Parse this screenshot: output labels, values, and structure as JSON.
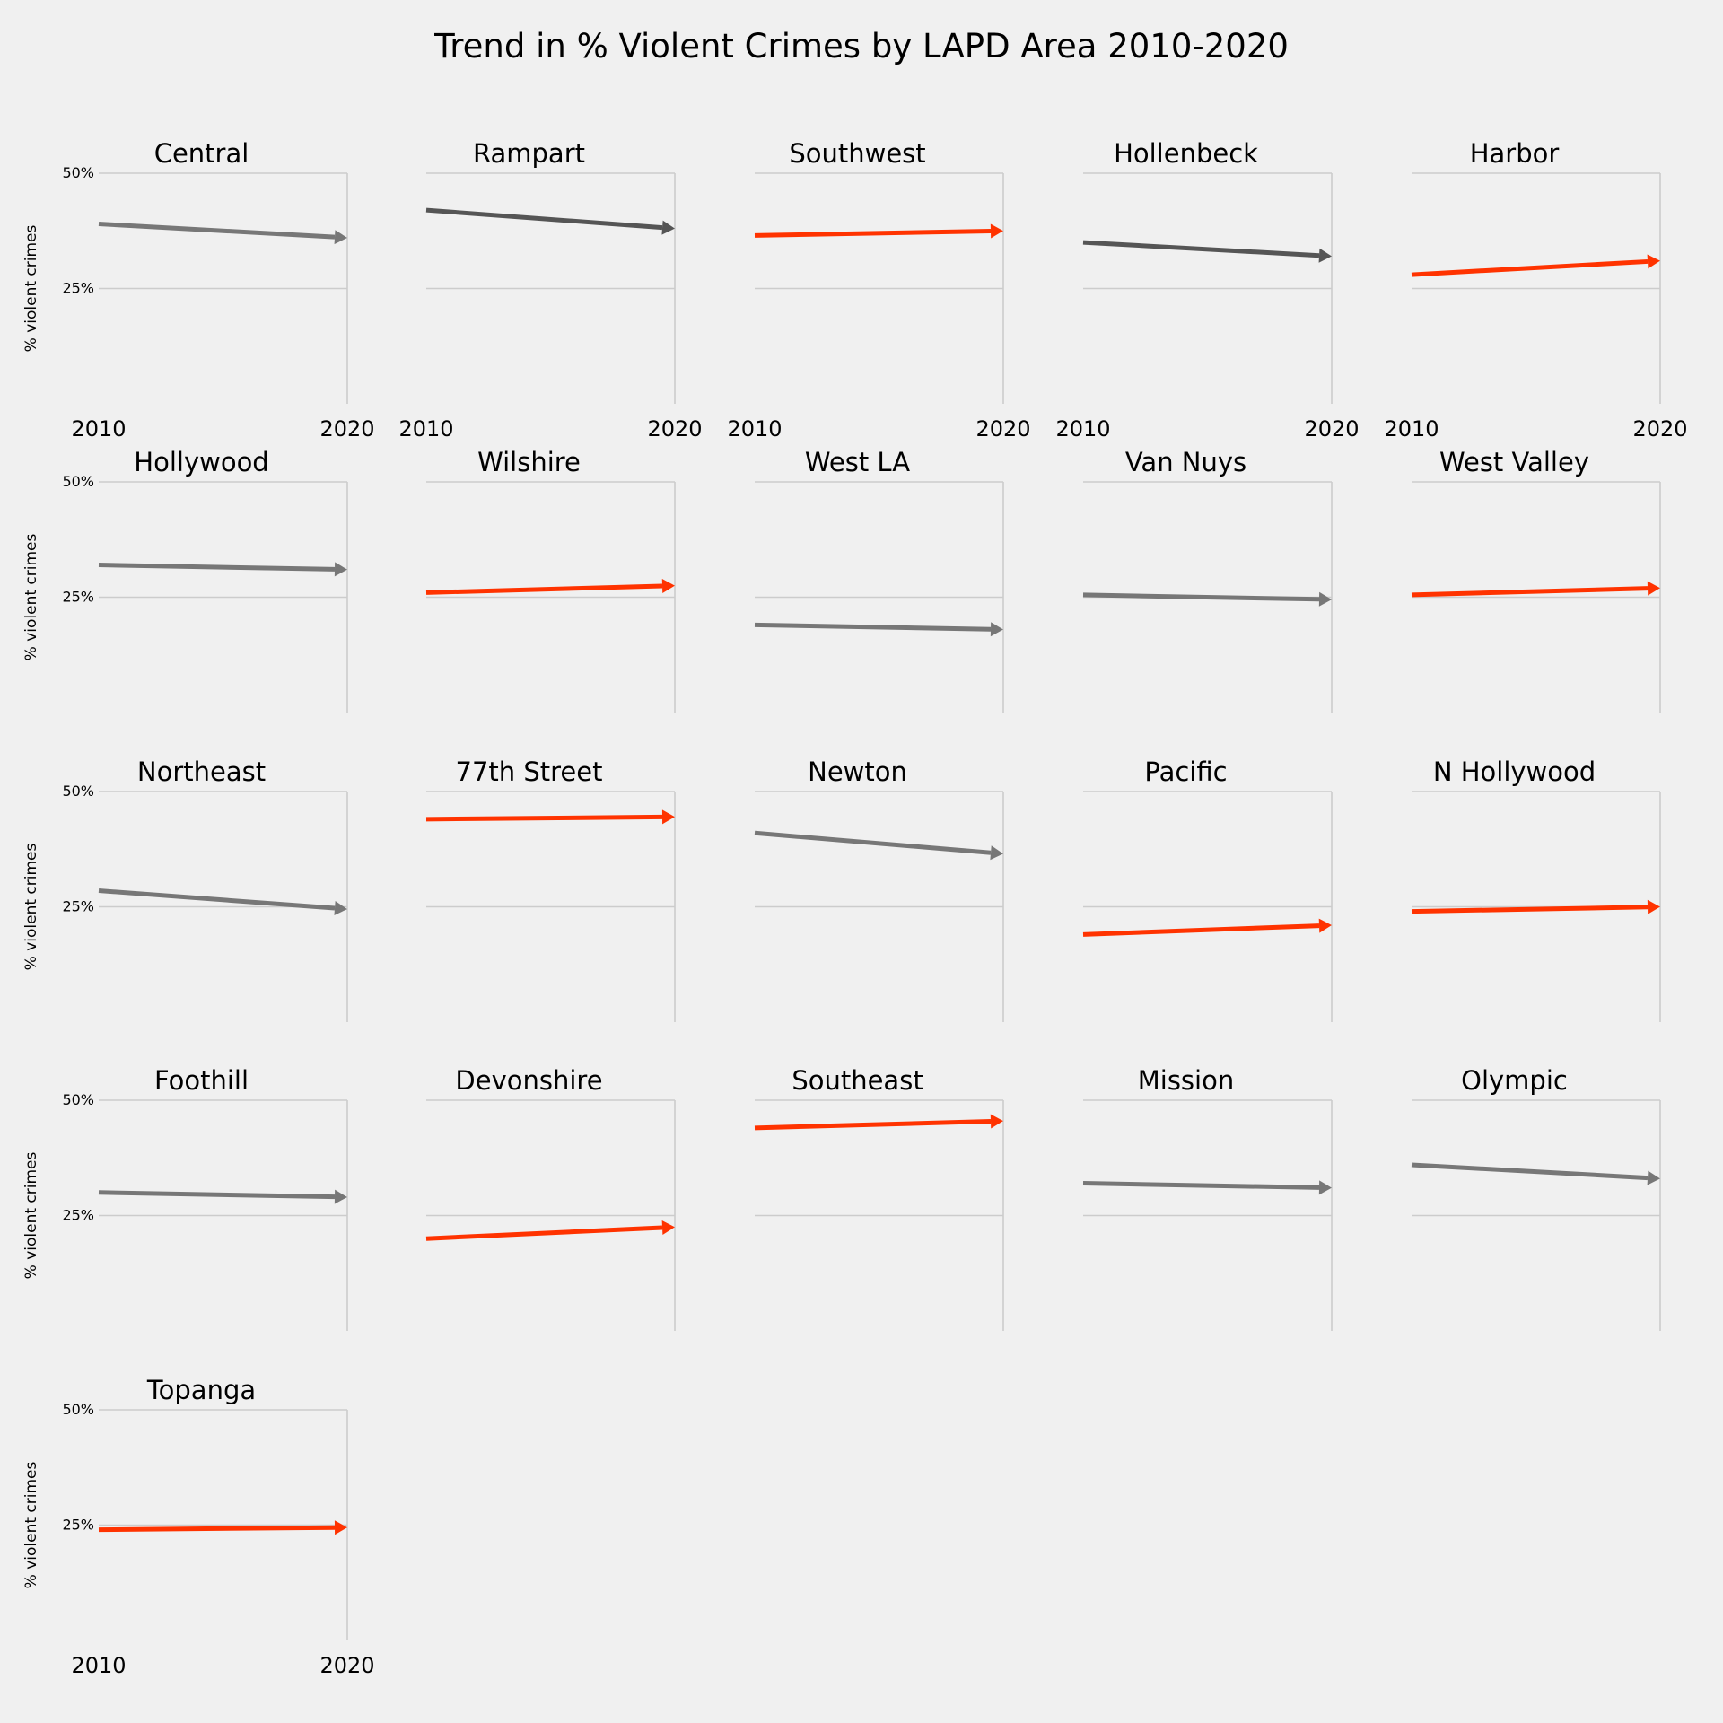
{
  "chart_data": {
    "type": "line",
    "title": "Trend in % Violent Crimes by LAPD Area 2010-2020",
    "ylabel": "% violent crimes",
    "x_ticks": [
      "2010",
      "2020"
    ],
    "y_ticks": [
      "25%",
      "50%"
    ],
    "ylim": [
      0,
      0.5
    ],
    "xlim": [
      2010,
      2020
    ],
    "colors": {
      "increase": "#ff3300",
      "decrease": "#777777",
      "decrease_dark": "#555555",
      "grid": "#cccccc",
      "background": "#f0f0f0"
    },
    "series": [
      {
        "name": "Central",
        "y2010": 0.39,
        "y2020": 0.36,
        "trend": "down"
      },
      {
        "name": "Rampart",
        "y2010": 0.42,
        "y2020": 0.38,
        "trend": "down",
        "dark": true
      },
      {
        "name": "Southwest",
        "y2010": 0.365,
        "y2020": 0.375,
        "trend": "up"
      },
      {
        "name": "Hollenbeck",
        "y2010": 0.35,
        "y2020": 0.32,
        "trend": "down",
        "dark": true
      },
      {
        "name": "Harbor",
        "y2010": 0.28,
        "y2020": 0.31,
        "trend": "up"
      },
      {
        "name": "Hollywood",
        "y2010": 0.32,
        "y2020": 0.31,
        "trend": "down"
      },
      {
        "name": "Wilshire",
        "y2010": 0.26,
        "y2020": 0.275,
        "trend": "up"
      },
      {
        "name": "West LA",
        "y2010": 0.19,
        "y2020": 0.18,
        "trend": "down"
      },
      {
        "name": "Van Nuys",
        "y2010": 0.255,
        "y2020": 0.245,
        "trend": "down"
      },
      {
        "name": "West Valley",
        "y2010": 0.255,
        "y2020": 0.27,
        "trend": "up"
      },
      {
        "name": "Northeast",
        "y2010": 0.285,
        "y2020": 0.245,
        "trend": "down"
      },
      {
        "name": "77th Street",
        "y2010": 0.44,
        "y2020": 0.445,
        "trend": "up"
      },
      {
        "name": "Newton",
        "y2010": 0.41,
        "y2020": 0.365,
        "trend": "down"
      },
      {
        "name": "Pacific",
        "y2010": 0.19,
        "y2020": 0.21,
        "trend": "up"
      },
      {
        "name": "N Hollywood",
        "y2010": 0.24,
        "y2020": 0.25,
        "trend": "up"
      },
      {
        "name": "Foothill",
        "y2010": 0.3,
        "y2020": 0.29,
        "trend": "down"
      },
      {
        "name": "Devonshire",
        "y2010": 0.2,
        "y2020": 0.225,
        "trend": "up"
      },
      {
        "name": "Southeast",
        "y2010": 0.44,
        "y2020": 0.455,
        "trend": "up"
      },
      {
        "name": "Mission",
        "y2010": 0.32,
        "y2020": 0.31,
        "trend": "down"
      },
      {
        "name": "Olympic",
        "y2010": 0.36,
        "y2020": 0.33,
        "trend": "down"
      },
      {
        "name": "Topanga",
        "y2010": 0.24,
        "y2020": 0.245,
        "trend": "up"
      }
    ]
  }
}
